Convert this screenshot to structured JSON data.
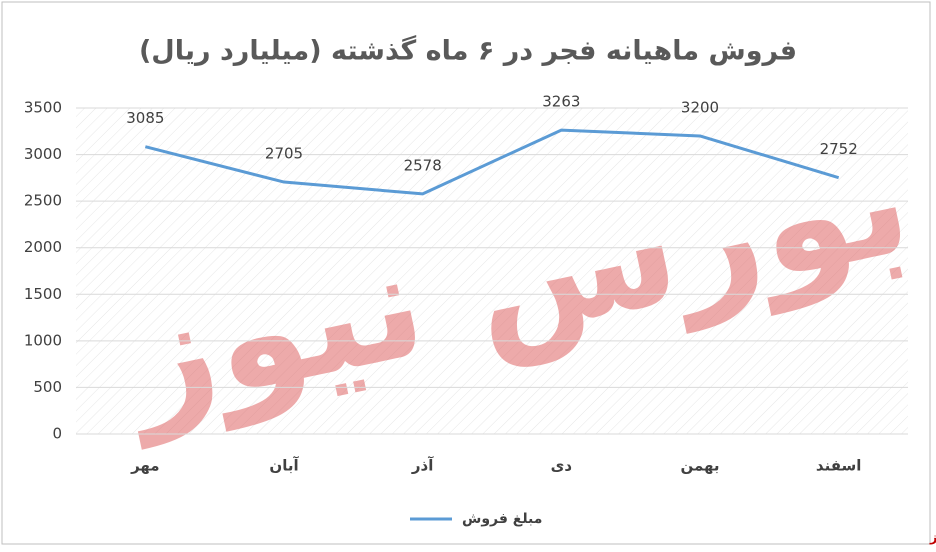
{
  "chart_data": {
    "type": "line",
    "title": "فروش ماهیانه فجر در ۶ ماه گذشته (میلیارد ریال)",
    "categories": [
      "مهر",
      "آبان",
      "آذر",
      "دی",
      "بهمن",
      "اسفند"
    ],
    "series": [
      {
        "name": "مبلغ فروش",
        "color": "#5b9bd5",
        "values": [
          3085,
          2705,
          2578,
          3263,
          3200,
          2752
        ]
      }
    ],
    "ylim": [
      0,
      3500
    ],
    "yticks": [
      0,
      500,
      1000,
      1500,
      2000,
      2500,
      3000,
      3500
    ],
    "grid": true,
    "legend": "bottom",
    "watermark": "بورس نیوز"
  }
}
